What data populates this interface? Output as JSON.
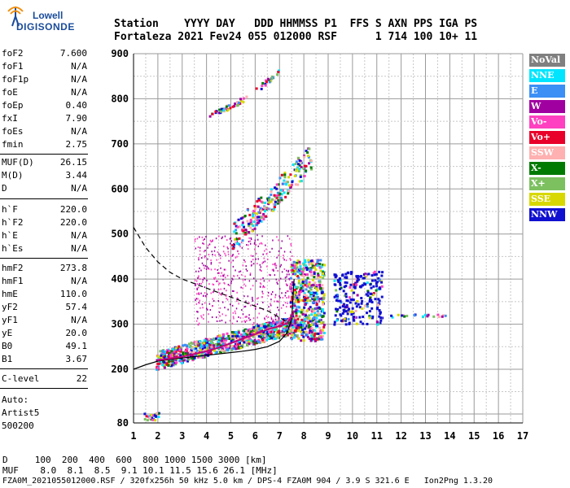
{
  "logo": {
    "top": "Lowell",
    "bottom": "DIGISONDE"
  },
  "header": {
    "line1": "Station    YYYY DAY   DDD HHMMSS P1  FFS S AXN PPS IGA PS",
    "line2": "Fortaleza 2021 Fev24 055 012000 RSF      1 714 100 10+ 11"
  },
  "params": {
    "group1": [
      {
        "name": "foF2",
        "value": "7.600"
      },
      {
        "name": "foF1",
        "value": "N/A"
      },
      {
        "name": "foF1p",
        "value": "N/A"
      },
      {
        "name": "foE",
        "value": "N/A"
      },
      {
        "name": "foEp",
        "value": "0.40"
      },
      {
        "name": "fxI",
        "value": "7.90"
      },
      {
        "name": "foEs",
        "value": "N/A"
      },
      {
        "name": "fmin",
        "value": "2.75"
      }
    ],
    "group2": [
      {
        "name": "MUF(D)",
        "value": "26.15"
      },
      {
        "name": "M(D)",
        "value": "3.44"
      },
      {
        "name": "D",
        "value": "N/A"
      }
    ],
    "group3": [
      {
        "name": "h`F",
        "value": "220.0"
      },
      {
        "name": "h`F2",
        "value": "220.0"
      },
      {
        "name": "h`E",
        "value": "N/A"
      },
      {
        "name": "h`Es",
        "value": "N/A"
      }
    ],
    "group4": [
      {
        "name": "hmF2",
        "value": "273.8"
      },
      {
        "name": "hmF1",
        "value": "N/A"
      },
      {
        "name": "hmE",
        "value": "110.0"
      },
      {
        "name": "yF2",
        "value": "57.4"
      },
      {
        "name": "yF1",
        "value": "N/A"
      },
      {
        "name": "yE",
        "value": "20.0"
      },
      {
        "name": "B0",
        "value": "49.1"
      },
      {
        "name": "B1",
        "value": "3.67"
      }
    ],
    "clevel": {
      "name": "C-level",
      "value": "22"
    }
  },
  "autoscaling": {
    "line1": "Auto:",
    "line2": "Artist5",
    "line3": "500200"
  },
  "legend": [
    {
      "label": "NoVal",
      "color": "#808080"
    },
    {
      "label": "NNE",
      "color": "#00e5ff"
    },
    {
      "label": "E",
      "color": "#3b8ff5"
    },
    {
      "label": "W",
      "color": "#a000a0"
    },
    {
      "label": "Vo-",
      "color": "#ff40c0"
    },
    {
      "label": "Vo+",
      "color": "#e8002a"
    },
    {
      "label": "SSW",
      "color": "#ffb0b0"
    },
    {
      "label": "X-",
      "color": "#007a00"
    },
    {
      "label": "X+",
      "color": "#7cc060"
    },
    {
      "label": "SSE",
      "color": "#d8d800"
    },
    {
      "label": "NNW",
      "color": "#1010d0"
    }
  ],
  "footer": {
    "d_row": "D     100  200  400  600  800 1000 1500 3000 [km]",
    "muf_row": "MUF    8.0  8.1  8.5  9.1 10.1 11.5 15.6 26.1 [MHz]",
    "file_row": "FZA0M_2021055012000.RSF / 320fx256h 50 kHz 5.0 km / DPS-4 FZA0M 904 / 3.9 S 321.6 E   Ion2Png 1.3.20"
  },
  "chart_data": {
    "type": "scatter",
    "xlim": [
      1,
      17
    ],
    "ylim": [
      80,
      900
    ],
    "x_ticks": [
      1,
      2,
      3,
      4,
      5,
      6,
      7,
      8,
      9,
      10,
      11,
      12,
      13,
      14,
      15,
      16,
      17
    ],
    "y_ticks": [
      80,
      200,
      300,
      400,
      500,
      600,
      700,
      800,
      900
    ],
    "grid": true,
    "legend_placement": "right",
    "series": [
      {
        "name": "profile",
        "x": [
          1.0,
          1.5,
          2.0,
          2.5,
          3.0,
          3.5,
          4.0,
          4.5,
          5.0,
          5.5,
          6.0,
          6.5,
          7.0,
          7.3,
          7.5,
          7.6
        ],
        "y": [
          200,
          210,
          218,
          222,
          225,
          228,
          231,
          234,
          237,
          240,
          244,
          250,
          262,
          280,
          310,
          400
        ]
      },
      {
        "name": "virtual-height-trace",
        "x": [
          2.0,
          2.5,
          3.0,
          3.5,
          4.0,
          4.5,
          5.0,
          5.5,
          6.0,
          6.5,
          7.0,
          7.3,
          7.5,
          7.6
        ],
        "y": [
          220,
          224,
          228,
          234,
          240,
          248,
          258,
          268,
          278,
          288,
          296,
          302,
          316,
          330
        ]
      },
      {
        "name": "topside-dashed",
        "x": [
          1.0,
          1.5,
          2.0,
          2.5,
          3.0,
          3.5,
          4.0,
          4.5,
          5.0,
          5.5,
          6.0,
          6.5,
          7.0,
          7.3
        ],
        "y": [
          515,
          470,
          438,
          415,
          400,
          390,
          380,
          370,
          360,
          350,
          340,
          330,
          315,
          305
        ]
      }
    ]
  }
}
